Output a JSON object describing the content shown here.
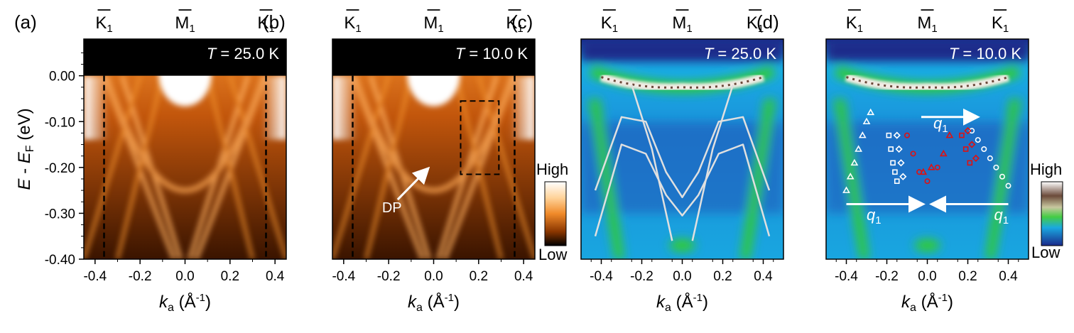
{
  "figure": {
    "ylabel_main": "E",
    "ylabel_sep": " - ",
    "ylabel_sub_base": "E",
    "ylabel_sub": "F",
    "ylabel_unit": " (eV)",
    "xlabel_main": "k",
    "xlabel_sub": "a",
    "xlabel_unit": " (Å",
    "xlabel_exp": "-1",
    "xlabel_close": ")",
    "colorbar_high": "High",
    "colorbar_low": "Low",
    "point_labels": {
      "k": "K",
      "m": "M",
      "sub": "1"
    },
    "annotations": {
      "dp": "DP",
      "q_symbol": "q",
      "q_sub": "1"
    },
    "colors": {
      "orange_high": "#ffffff",
      "orange_mid": "#d2650a",
      "orange_low": "#000000",
      "curv_high": "#ffffff",
      "curv_green": "#33cc33",
      "curv_cyan": "#19aee6",
      "curv_blue": "#1a2a8a",
      "fit_line": "#e0e0e0",
      "marker_red": "#e01010",
      "marker_white": "#ffffff"
    }
  },
  "chart_data": [
    {
      "panel": "(a)",
      "type": "heatmap",
      "temp_symbol": "T",
      "temp_value": " = 25.0 K",
      "xlim": [
        -0.45,
        0.45
      ],
      "ylim": [
        -0.4,
        0.08
      ],
      "xticks": [
        "-0.4",
        "-0.2",
        "0.0",
        "0.2",
        "0.4"
      ],
      "xtick_values": [
        -0.4,
        -0.2,
        0.0,
        0.2,
        0.4
      ],
      "yticks": [
        "0.00",
        "-0.10",
        "-0.20",
        "-0.30",
        "-0.40"
      ],
      "ytick_values": [
        0.0,
        -0.1,
        -0.2,
        -0.3,
        -0.4
      ],
      "top_points": [
        {
          "label": "K",
          "k": -0.36
        },
        {
          "label": "M",
          "k": 0.0
        },
        {
          "label": "K",
          "k": 0.36
        }
      ],
      "dashed_lines_k": [
        -0.36,
        0.36
      ],
      "colormap": "orange"
    },
    {
      "panel": "(b)",
      "type": "heatmap",
      "temp_symbol": "T",
      "temp_value": " = 10.0 K",
      "xlim": [
        -0.45,
        0.45
      ],
      "ylim": [
        -0.4,
        0.08
      ],
      "xticks": [
        "-0.4",
        "-0.2",
        "0.0",
        "0.2",
        "0.4"
      ],
      "xtick_values": [
        -0.4,
        -0.2,
        0.0,
        0.2,
        0.4
      ],
      "yticks": [],
      "top_points": [
        {
          "label": "K",
          "k": -0.36
        },
        {
          "label": "M",
          "k": 0.0
        },
        {
          "label": "K",
          "k": 0.36
        }
      ],
      "dashed_lines_k": [
        -0.36,
        0.36
      ],
      "dashed_box": {
        "k": [
          0.12,
          0.29
        ],
        "e": [
          -0.055,
          -0.215
        ]
      },
      "dp_arrow": {
        "from": [
          -0.16,
          -0.27
        ],
        "to": [
          -0.03,
          -0.205
        ]
      },
      "colormap": "orange"
    },
    {
      "panel": "(c)",
      "type": "heatmap",
      "temp_symbol": "T",
      "temp_value": " = 25.0 K",
      "xlim": [
        -0.5,
        0.5
      ],
      "ylim": [
        -0.4,
        0.08
      ],
      "xticks": [
        "-0.4",
        "-0.2",
        "0.0",
        "0.2",
        "0.4"
      ],
      "xtick_values": [
        -0.4,
        -0.2,
        0.0,
        0.2,
        0.4
      ],
      "yticks": [],
      "top_points": [
        {
          "label": "K",
          "k": -0.36
        },
        {
          "label": "M",
          "k": 0.0
        },
        {
          "label": "K",
          "k": 0.36
        }
      ],
      "fit_curves": [
        [
          [
            -0.43,
            -0.25
          ],
          [
            -0.3,
            -0.09
          ],
          [
            -0.18,
            -0.1
          ],
          [
            -0.08,
            -0.21
          ],
          [
            0.0,
            -0.265
          ],
          [
            0.08,
            -0.21
          ],
          [
            0.18,
            -0.1
          ],
          [
            0.3,
            -0.09
          ],
          [
            0.43,
            -0.25
          ]
        ],
        [
          [
            -0.43,
            -0.35
          ],
          [
            -0.3,
            -0.15
          ],
          [
            -0.18,
            -0.17
          ],
          [
            -0.08,
            -0.26
          ],
          [
            0.0,
            -0.305
          ],
          [
            0.08,
            -0.26
          ],
          [
            0.18,
            -0.17
          ],
          [
            0.3,
            -0.15
          ],
          [
            0.43,
            -0.35
          ]
        ],
        [
          [
            -0.25,
            -0.02
          ],
          [
            -0.15,
            -0.16
          ],
          [
            -0.05,
            -0.36
          ]
        ],
        [
          [
            0.25,
            -0.02
          ],
          [
            0.15,
            -0.16
          ],
          [
            0.05,
            -0.36
          ]
        ]
      ],
      "colormap": "curvature"
    },
    {
      "panel": "(d)",
      "type": "heatmap",
      "temp_symbol": "T",
      "temp_value": " = 10.0 K",
      "xlim": [
        -0.5,
        0.5
      ],
      "ylim": [
        -0.4,
        0.08
      ],
      "xticks": [
        "-0.4",
        "-0.2",
        "0.0",
        "0.2",
        "0.4"
      ],
      "xtick_values": [
        -0.4,
        -0.2,
        0.0,
        0.2,
        0.4
      ],
      "yticks": [],
      "top_points": [
        {
          "label": "K",
          "k": -0.36
        },
        {
          "label": "M",
          "k": 0.0
        },
        {
          "label": "K",
          "k": 0.36
        }
      ],
      "q_arrows": [
        {
          "from": [
            -0.03,
            -0.09
          ],
          "to": [
            0.24,
            -0.09
          ],
          "label_at": [
            0.03,
            -0.115
          ],
          "label_above": false
        },
        {
          "from": [
            -0.4,
            -0.28
          ],
          "to": [
            -0.03,
            -0.28
          ],
          "label_at": [
            -0.3,
            -0.315
          ],
          "label_above": false
        },
        {
          "from": [
            0.4,
            -0.28
          ],
          "to": [
            0.03,
            -0.28
          ],
          "label_at": [
            0.33,
            -0.315
          ],
          "label_above": false
        }
      ],
      "marker_series": [
        {
          "marker": "triangle",
          "color": "white",
          "points": [
            [
              -0.4,
              -0.25
            ],
            [
              -0.38,
              -0.22
            ],
            [
              -0.36,
              -0.19
            ],
            [
              -0.34,
              -0.16
            ],
            [
              -0.32,
              -0.13
            ],
            [
              -0.3,
              -0.1
            ],
            [
              -0.28,
              -0.08
            ]
          ]
        },
        {
          "marker": "square",
          "color": "white",
          "points": [
            [
              -0.19,
              -0.13
            ],
            [
              -0.18,
              -0.16
            ],
            [
              -0.17,
              -0.19
            ],
            [
              -0.16,
              -0.21
            ],
            [
              -0.15,
              -0.23
            ]
          ]
        },
        {
          "marker": "diamond",
          "color": "white",
          "points": [
            [
              -0.15,
              -0.13
            ],
            [
              -0.14,
              -0.16
            ],
            [
              -0.13,
              -0.19
            ],
            [
              -0.12,
              -0.22
            ]
          ]
        },
        {
          "marker": "circle",
          "color": "white",
          "points": [
            [
              0.22,
              -0.12
            ],
            [
              0.25,
              -0.14
            ],
            [
              0.28,
              -0.16
            ],
            [
              0.31,
              -0.18
            ],
            [
              0.34,
              -0.2
            ],
            [
              0.37,
              -0.22
            ],
            [
              0.4,
              -0.24
            ]
          ]
        },
        {
          "marker": "circle",
          "color": "red",
          "points": [
            [
              -0.1,
              -0.13
            ],
            [
              -0.07,
              -0.17
            ],
            [
              -0.04,
              -0.21
            ],
            [
              0.0,
              -0.23
            ],
            [
              0.05,
              -0.2
            ]
          ]
        },
        {
          "marker": "triangle",
          "color": "red",
          "points": [
            [
              -0.02,
              -0.21
            ],
            [
              0.02,
              -0.2
            ],
            [
              0.08,
              -0.17
            ],
            [
              0.11,
              -0.13
            ]
          ]
        },
        {
          "marker": "square",
          "color": "red",
          "points": [
            [
              0.17,
              -0.13
            ],
            [
              0.19,
              -0.16
            ],
            [
              0.21,
              -0.19
            ]
          ]
        },
        {
          "marker": "diamond",
          "color": "red",
          "points": [
            [
              0.2,
              -0.12
            ],
            [
              0.22,
              -0.15
            ],
            [
              0.24,
              -0.18
            ]
          ]
        }
      ],
      "colormap": "curvature"
    }
  ]
}
